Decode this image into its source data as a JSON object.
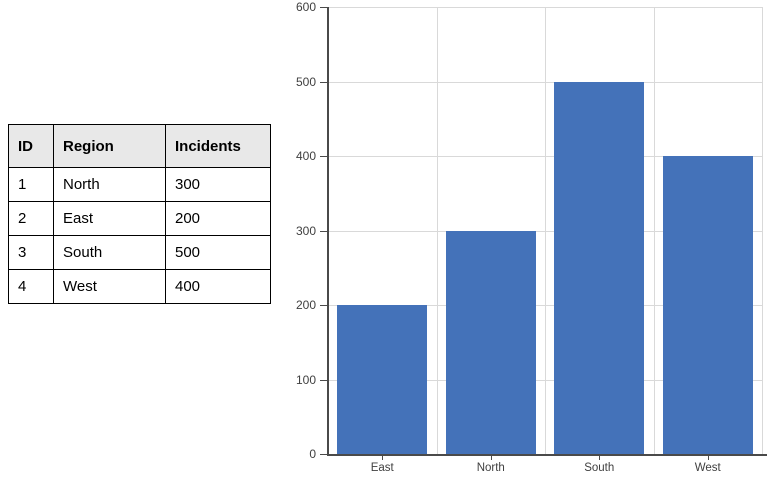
{
  "table": {
    "columns": [
      "ID",
      "Region",
      "Incidents"
    ],
    "rows": [
      {
        "id": "1",
        "region": "North",
        "incidents": "300"
      },
      {
        "id": "2",
        "region": "East",
        "incidents": "200"
      },
      {
        "id": "3",
        "region": "South",
        "incidents": "500"
      },
      {
        "id": "4",
        "region": "West",
        "incidents": "400"
      }
    ]
  },
  "chart_data": {
    "type": "bar",
    "categories": [
      "East",
      "North",
      "South",
      "West"
    ],
    "values": [
      200,
      300,
      500,
      400
    ],
    "title": "",
    "xlabel": "",
    "ylabel": "",
    "ylim": [
      0,
      600
    ],
    "ytick_step": 100,
    "yticks": [
      0,
      100,
      200,
      300,
      400,
      500,
      600
    ],
    "grid": true,
    "legend": false,
    "colors": {
      "bar": "#4472B9",
      "gridline": "#D9D9D9",
      "axis": "#4A4A4A",
      "tick_label": "#404040"
    }
  }
}
